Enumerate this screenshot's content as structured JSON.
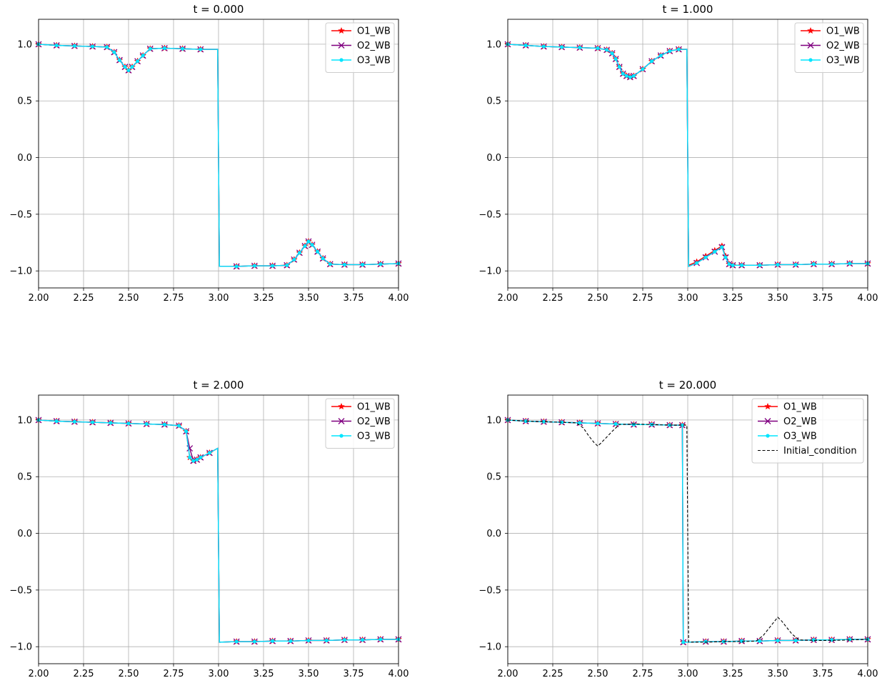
{
  "chart_data": [
    {
      "type": "line",
      "title": "t = 0.000",
      "xlim": [
        2.0,
        4.0
      ],
      "ylim": [
        -1.15,
        1.22
      ],
      "xticks": [
        "2.00",
        "2.25",
        "2.50",
        "2.75",
        "3.00",
        "3.25",
        "3.50",
        "3.75",
        "4.00"
      ],
      "yticks": [
        "1.0",
        "0.5",
        "0.0",
        "−0.5",
        "−1.0"
      ],
      "grid": true,
      "legend_position": "top-right",
      "series": [
        {
          "name": "O1_WB",
          "color": "#ff0000",
          "marker": "star",
          "x": [
            2.0,
            2.1,
            2.2,
            2.3,
            2.38,
            2.42,
            2.45,
            2.48,
            2.5,
            2.52,
            2.55,
            2.58,
            2.62,
            2.7,
            2.8,
            2.9,
            2.995,
            3.005,
            3.1,
            3.2,
            3.3,
            3.38,
            3.42,
            3.45,
            3.48,
            3.5,
            3.52,
            3.55,
            3.58,
            3.62,
            3.7,
            3.8,
            3.9,
            4.0
          ],
          "y": [
            1.0,
            0.99,
            0.985,
            0.98,
            0.975,
            0.93,
            0.86,
            0.8,
            0.77,
            0.8,
            0.85,
            0.9,
            0.96,
            0.965,
            0.96,
            0.955,
            0.955,
            -0.96,
            -0.96,
            -0.955,
            -0.955,
            -0.95,
            -0.9,
            -0.84,
            -0.78,
            -0.74,
            -0.77,
            -0.83,
            -0.89,
            -0.94,
            -0.945,
            -0.945,
            -0.94,
            -0.935
          ]
        },
        {
          "name": "O2_WB",
          "color": "#800080",
          "marker": "x",
          "x": [
            2.0,
            2.1,
            2.2,
            2.3,
            2.38,
            2.42,
            2.45,
            2.48,
            2.5,
            2.52,
            2.55,
            2.58,
            2.62,
            2.7,
            2.8,
            2.9,
            2.995,
            3.005,
            3.1,
            3.2,
            3.3,
            3.38,
            3.42,
            3.45,
            3.48,
            3.5,
            3.52,
            3.55,
            3.58,
            3.62,
            3.7,
            3.8,
            3.9,
            4.0
          ],
          "y": [
            1.0,
            0.99,
            0.985,
            0.98,
            0.975,
            0.93,
            0.86,
            0.8,
            0.77,
            0.8,
            0.85,
            0.9,
            0.96,
            0.965,
            0.96,
            0.955,
            0.955,
            -0.96,
            -0.96,
            -0.955,
            -0.955,
            -0.95,
            -0.9,
            -0.84,
            -0.78,
            -0.74,
            -0.77,
            -0.83,
            -0.89,
            -0.94,
            -0.945,
            -0.945,
            -0.94,
            -0.935
          ]
        },
        {
          "name": "O3_WB",
          "color": "#00e5ff",
          "marker": "dot",
          "x": [
            2.0,
            2.1,
            2.2,
            2.3,
            2.38,
            2.42,
            2.45,
            2.48,
            2.5,
            2.52,
            2.55,
            2.58,
            2.62,
            2.7,
            2.8,
            2.9,
            2.995,
            3.005,
            3.1,
            3.2,
            3.3,
            3.38,
            3.42,
            3.45,
            3.48,
            3.5,
            3.52,
            3.55,
            3.58,
            3.62,
            3.7,
            3.8,
            3.9,
            4.0
          ],
          "y": [
            1.0,
            0.99,
            0.985,
            0.98,
            0.975,
            0.93,
            0.86,
            0.8,
            0.77,
            0.8,
            0.85,
            0.9,
            0.96,
            0.965,
            0.96,
            0.955,
            0.955,
            -0.96,
            -0.96,
            -0.955,
            -0.955,
            -0.95,
            -0.9,
            -0.84,
            -0.78,
            -0.74,
            -0.77,
            -0.83,
            -0.89,
            -0.94,
            -0.945,
            -0.945,
            -0.94,
            -0.935
          ]
        }
      ]
    },
    {
      "type": "line",
      "title": "t = 1.000",
      "xlim": [
        2.0,
        4.0
      ],
      "ylim": [
        -1.15,
        1.22
      ],
      "xticks": [
        "2.00",
        "2.25",
        "2.50",
        "2.75",
        "3.00",
        "3.25",
        "3.50",
        "3.75",
        "4.00"
      ],
      "yticks": [
        "1.0",
        "0.5",
        "0.0",
        "−0.5",
        "−1.0"
      ],
      "grid": true,
      "legend_position": "top-right",
      "series": [
        {
          "name": "O1_WB",
          "color": "#ff0000",
          "marker": "star",
          "x": [
            2.0,
            2.1,
            2.2,
            2.3,
            2.4,
            2.5,
            2.55,
            2.58,
            2.6,
            2.62,
            2.64,
            2.66,
            2.68,
            2.7,
            2.75,
            2.8,
            2.85,
            2.9,
            2.95,
            2.995,
            3.005,
            3.05,
            3.1,
            3.15,
            3.19,
            3.21,
            3.23,
            3.25,
            3.3,
            3.4,
            3.5,
            3.6,
            3.7,
            3.8,
            3.9,
            4.0
          ],
          "y": [
            1.0,
            0.99,
            0.98,
            0.975,
            0.97,
            0.965,
            0.95,
            0.92,
            0.87,
            0.8,
            0.74,
            0.72,
            0.71,
            0.72,
            0.78,
            0.85,
            0.9,
            0.94,
            0.955,
            0.955,
            -0.95,
            -0.92,
            -0.87,
            -0.82,
            -0.78,
            -0.87,
            -0.94,
            -0.95,
            -0.95,
            -0.95,
            -0.945,
            -0.945,
            -0.94,
            -0.94,
            -0.935,
            -0.935
          ]
        },
        {
          "name": "O2_WB",
          "color": "#800080",
          "marker": "x",
          "x": [
            2.0,
            2.1,
            2.2,
            2.3,
            2.4,
            2.5,
            2.55,
            2.58,
            2.6,
            2.62,
            2.64,
            2.66,
            2.68,
            2.7,
            2.75,
            2.8,
            2.85,
            2.9,
            2.95,
            2.995,
            3.005,
            3.05,
            3.1,
            3.15,
            3.19,
            3.21,
            3.23,
            3.25,
            3.3,
            3.4,
            3.5,
            3.6,
            3.7,
            3.8,
            3.9,
            4.0
          ],
          "y": [
            1.0,
            0.99,
            0.98,
            0.975,
            0.97,
            0.965,
            0.95,
            0.92,
            0.87,
            0.8,
            0.74,
            0.72,
            0.71,
            0.72,
            0.78,
            0.85,
            0.9,
            0.94,
            0.955,
            0.955,
            -0.96,
            -0.93,
            -0.88,
            -0.83,
            -0.79,
            -0.88,
            -0.94,
            -0.95,
            -0.95,
            -0.95,
            -0.945,
            -0.945,
            -0.94,
            -0.94,
            -0.935,
            -0.935
          ]
        },
        {
          "name": "O3_WB",
          "color": "#00e5ff",
          "marker": "dot",
          "x": [
            2.0,
            2.1,
            2.2,
            2.3,
            2.4,
            2.5,
            2.55,
            2.58,
            2.6,
            2.62,
            2.64,
            2.66,
            2.68,
            2.7,
            2.75,
            2.8,
            2.85,
            2.9,
            2.95,
            2.995,
            3.005,
            3.05,
            3.1,
            3.15,
            3.19,
            3.21,
            3.23,
            3.25,
            3.3,
            3.4,
            3.5,
            3.6,
            3.7,
            3.8,
            3.9,
            4.0
          ],
          "y": [
            1.0,
            0.99,
            0.98,
            0.975,
            0.97,
            0.965,
            0.95,
            0.92,
            0.87,
            0.8,
            0.74,
            0.72,
            0.71,
            0.72,
            0.78,
            0.85,
            0.9,
            0.94,
            0.955,
            0.955,
            -0.96,
            -0.93,
            -0.88,
            -0.83,
            -0.79,
            -0.88,
            -0.94,
            -0.95,
            -0.95,
            -0.95,
            -0.945,
            -0.945,
            -0.94,
            -0.94,
            -0.935,
            -0.935
          ]
        }
      ]
    },
    {
      "type": "line",
      "title": "t = 2.000",
      "xlim": [
        2.0,
        4.0
      ],
      "ylim": [
        -1.15,
        1.22
      ],
      "xticks": [
        "2.00",
        "2.25",
        "2.50",
        "2.75",
        "3.00",
        "3.25",
        "3.50",
        "3.75",
        "4.00"
      ],
      "yticks": [
        "1.0",
        "0.5",
        "0.0",
        "−0.5",
        "−1.0"
      ],
      "grid": true,
      "legend_position": "top-right",
      "series": [
        {
          "name": "O1_WB",
          "color": "#ff0000",
          "marker": "star",
          "x": [
            2.0,
            2.1,
            2.2,
            2.3,
            2.4,
            2.5,
            2.6,
            2.7,
            2.78,
            2.82,
            2.84,
            2.86,
            2.88,
            2.9,
            2.95,
            2.995,
            3.005,
            3.1,
            3.2,
            3.3,
            3.4,
            3.5,
            3.6,
            3.7,
            3.8,
            3.9,
            4.0
          ],
          "y": [
            1.0,
            0.99,
            0.985,
            0.98,
            0.975,
            0.97,
            0.965,
            0.96,
            0.95,
            0.9,
            0.67,
            0.64,
            0.65,
            0.67,
            0.71,
            0.75,
            -0.96,
            -0.955,
            -0.955,
            -0.95,
            -0.95,
            -0.945,
            -0.945,
            -0.94,
            -0.94,
            -0.935,
            -0.935
          ]
        },
        {
          "name": "O2_WB",
          "color": "#800080",
          "marker": "x",
          "x": [
            2.0,
            2.1,
            2.2,
            2.3,
            2.4,
            2.5,
            2.6,
            2.7,
            2.78,
            2.82,
            2.84,
            2.86,
            2.88,
            2.9,
            2.95,
            2.995,
            3.005,
            3.1,
            3.2,
            3.3,
            3.4,
            3.5,
            3.6,
            3.7,
            3.8,
            3.9,
            4.0
          ],
          "y": [
            1.0,
            0.99,
            0.985,
            0.98,
            0.975,
            0.97,
            0.965,
            0.96,
            0.95,
            0.9,
            0.75,
            0.64,
            0.65,
            0.67,
            0.71,
            0.75,
            -0.96,
            -0.955,
            -0.955,
            -0.95,
            -0.95,
            -0.945,
            -0.945,
            -0.94,
            -0.94,
            -0.935,
            -0.935
          ]
        },
        {
          "name": "O3_WB",
          "color": "#00e5ff",
          "marker": "dot",
          "x": [
            2.0,
            2.1,
            2.2,
            2.3,
            2.4,
            2.5,
            2.6,
            2.7,
            2.78,
            2.82,
            2.84,
            2.86,
            2.88,
            2.9,
            2.95,
            2.995,
            3.005,
            3.1,
            3.2,
            3.3,
            3.4,
            3.5,
            3.6,
            3.7,
            3.8,
            3.9,
            4.0
          ],
          "y": [
            1.0,
            0.99,
            0.985,
            0.98,
            0.975,
            0.97,
            0.965,
            0.96,
            0.95,
            0.9,
            0.67,
            0.64,
            0.65,
            0.67,
            0.71,
            0.75,
            -0.96,
            -0.955,
            -0.955,
            -0.95,
            -0.95,
            -0.945,
            -0.945,
            -0.94,
            -0.94,
            -0.935,
            -0.935
          ]
        }
      ]
    },
    {
      "type": "line",
      "title": "t = 20.000",
      "xlim": [
        2.0,
        4.0
      ],
      "ylim": [
        -1.15,
        1.22
      ],
      "xticks": [
        "2.00",
        "2.25",
        "2.50",
        "2.75",
        "3.00",
        "3.25",
        "3.50",
        "3.75",
        "4.00"
      ],
      "yticks": [
        "1.0",
        "0.5",
        "0.0",
        "−0.5",
        "−1.0"
      ],
      "grid": true,
      "legend_position": "top-right",
      "series": [
        {
          "name": "O1_WB",
          "color": "#ff0000",
          "marker": "star",
          "x": [
            2.0,
            2.1,
            2.2,
            2.3,
            2.4,
            2.5,
            2.6,
            2.7,
            2.8,
            2.9,
            2.97,
            2.975,
            3.0,
            3.1,
            3.2,
            3.3,
            3.4,
            3.5,
            3.6,
            3.7,
            3.8,
            3.9,
            4.0
          ],
          "y": [
            1.0,
            0.99,
            0.985,
            0.98,
            0.975,
            0.97,
            0.965,
            0.96,
            0.96,
            0.955,
            0.955,
            -0.96,
            -0.96,
            -0.955,
            -0.955,
            -0.95,
            -0.95,
            -0.945,
            -0.945,
            -0.94,
            -0.94,
            -0.935,
            -0.935
          ]
        },
        {
          "name": "O2_WB",
          "color": "#800080",
          "marker": "x",
          "x": [
            2.0,
            2.1,
            2.2,
            2.3,
            2.4,
            2.5,
            2.6,
            2.7,
            2.8,
            2.9,
            2.97,
            2.975,
            3.0,
            3.1,
            3.2,
            3.3,
            3.4,
            3.5,
            3.6,
            3.7,
            3.8,
            3.9,
            4.0
          ],
          "y": [
            1.0,
            0.99,
            0.985,
            0.98,
            0.975,
            0.97,
            0.965,
            0.96,
            0.96,
            0.955,
            0.955,
            -0.96,
            -0.96,
            -0.955,
            -0.955,
            -0.95,
            -0.95,
            -0.945,
            -0.945,
            -0.94,
            -0.94,
            -0.935,
            -0.935
          ]
        },
        {
          "name": "O3_WB",
          "color": "#00e5ff",
          "marker": "dot",
          "x": [
            2.0,
            2.1,
            2.2,
            2.3,
            2.4,
            2.5,
            2.6,
            2.7,
            2.8,
            2.9,
            2.97,
            2.975,
            3.0,
            3.1,
            3.2,
            3.3,
            3.4,
            3.5,
            3.6,
            3.7,
            3.8,
            3.9,
            4.0
          ],
          "y": [
            1.0,
            0.99,
            0.985,
            0.98,
            0.975,
            0.97,
            0.965,
            0.96,
            0.96,
            0.955,
            0.955,
            -0.96,
            -0.96,
            -0.955,
            -0.955,
            -0.95,
            -0.95,
            -0.945,
            -0.945,
            -0.94,
            -0.94,
            -0.935,
            -0.935
          ]
        },
        {
          "name": "Initial_condition",
          "color": "#000000",
          "marker": "none",
          "dashed": true,
          "x": [
            2.0,
            2.1,
            2.2,
            2.3,
            2.38,
            2.42,
            2.45,
            2.48,
            2.5,
            2.52,
            2.55,
            2.58,
            2.62,
            2.7,
            2.8,
            2.9,
            2.995,
            3.005,
            3.1,
            3.2,
            3.3,
            3.38,
            3.42,
            3.45,
            3.48,
            3.5,
            3.52,
            3.55,
            3.58,
            3.62,
            3.7,
            3.8,
            3.9,
            4.0
          ],
          "y": [
            1.0,
            0.99,
            0.985,
            0.98,
            0.975,
            0.93,
            0.86,
            0.8,
            0.77,
            0.8,
            0.85,
            0.9,
            0.96,
            0.965,
            0.96,
            0.955,
            0.955,
            -0.96,
            -0.96,
            -0.955,
            -0.955,
            -0.95,
            -0.9,
            -0.84,
            -0.78,
            -0.74,
            -0.77,
            -0.83,
            -0.89,
            -0.94,
            -0.945,
            -0.945,
            -0.94,
            -0.935
          ]
        }
      ]
    }
  ]
}
